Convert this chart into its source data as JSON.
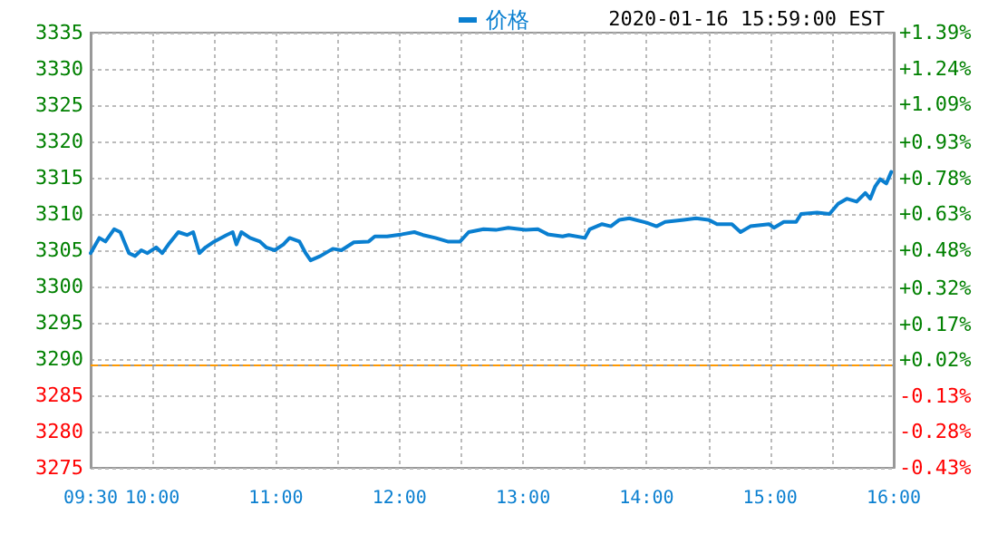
{
  "chart_data": {
    "type": "line",
    "subtitle": "2020-01-16 15:59:00 EST",
    "x": [
      9.5,
      9.57,
      9.62,
      9.69,
      9.74,
      9.81,
      9.86,
      9.91,
      9.96,
      10.03,
      10.08,
      10.13,
      10.21,
      10.28,
      10.33,
      10.38,
      10.43,
      10.5,
      10.6,
      10.65,
      10.68,
      10.72,
      10.79,
      10.87,
      10.92,
      10.99,
      11.06,
      11.11,
      11.19,
      11.24,
      11.28,
      11.36,
      11.46,
      11.53,
      11.63,
      11.75,
      11.8,
      11.9,
      12.02,
      12.12,
      12.19,
      12.29,
      12.39,
      12.49,
      12.56,
      12.68,
      12.78,
      12.88,
      13.02,
      13.12,
      13.2,
      13.32,
      13.37,
      13.5,
      13.54,
      13.64,
      13.71,
      13.78,
      13.86,
      14.0,
      14.08,
      14.15,
      14.3,
      14.4,
      14.5,
      14.57,
      14.69,
      14.76,
      14.84,
      14.99,
      15.03,
      15.11,
      15.21,
      15.25,
      15.38,
      15.48,
      15.55,
      15.62,
      15.7,
      15.77,
      15.81,
      15.85,
      15.89,
      15.94,
      15.98
    ],
    "series": [
      {
        "name": "价格",
        "color": "#0a7fd0",
        "values": [
          3304.6,
          3306.7,
          3306.2,
          3307.9,
          3307.5,
          3304.6,
          3304.2,
          3305.0,
          3304.6,
          3305.4,
          3304.6,
          3305.8,
          3307.5,
          3307.1,
          3307.5,
          3304.6,
          3305.4,
          3306.2,
          3307.1,
          3307.5,
          3305.8,
          3307.5,
          3306.7,
          3306.2,
          3305.4,
          3305.0,
          3305.8,
          3306.7,
          3306.2,
          3304.6,
          3303.6,
          3304.2,
          3305.2,
          3305.0,
          3306.1,
          3306.2,
          3306.9,
          3306.9,
          3307.2,
          3307.5,
          3307.1,
          3306.7,
          3306.2,
          3306.2,
          3307.5,
          3307.9,
          3307.8,
          3308.1,
          3307.8,
          3307.9,
          3307.2,
          3306.9,
          3307.1,
          3306.7,
          3307.9,
          3308.6,
          3308.3,
          3309.2,
          3309.4,
          3308.8,
          3308.3,
          3308.9,
          3309.2,
          3309.4,
          3309.2,
          3308.6,
          3308.6,
          3307.5,
          3308.3,
          3308.6,
          3308.1,
          3308.9,
          3308.9,
          3310.0,
          3310.2,
          3310.0,
          3311.4,
          3312.1,
          3311.7,
          3312.9,
          3312.1,
          3313.8,
          3314.8,
          3314.2,
          3315.8
        ]
      }
    ],
    "xlim": [
      9.5,
      16
    ],
    "xticks": [
      {
        "value": 9.5,
        "label": "09:30"
      },
      {
        "value": 10,
        "label": "10:00"
      },
      {
        "value": 10.5,
        "label": null
      },
      {
        "value": 11,
        "label": "11:00"
      },
      {
        "value": 11.5,
        "label": null
      },
      {
        "value": 12,
        "label": "12:00"
      },
      {
        "value": 12.5,
        "label": null
      },
      {
        "value": 13,
        "label": "13:00"
      },
      {
        "value": 13.5,
        "label": null
      },
      {
        "value": 14,
        "label": "14:00"
      },
      {
        "value": 14.5,
        "label": null
      },
      {
        "value": 15,
        "label": "15:00"
      },
      {
        "value": 15.5,
        "label": null
      },
      {
        "value": 16,
        "label": "16:00"
      }
    ],
    "ylim": [
      3275,
      3335
    ],
    "yticks": [
      3275,
      3280,
      3285,
      3290,
      3295,
      3300,
      3305,
      3310,
      3315,
      3320,
      3325,
      3330,
      3335
    ],
    "y2lim": [
      -0.43,
      1.39
    ],
    "y2ticks": [
      {
        "value": -0.43,
        "label": "-0.43%"
      },
      {
        "value": -0.28,
        "label": "-0.28%"
      },
      {
        "value": -0.13,
        "label": "-0.13%"
      },
      {
        "value": 0.02,
        "label": "+0.02%"
      },
      {
        "value": 0.17,
        "label": "+0.17%"
      },
      {
        "value": 0.32,
        "label": "+0.32%"
      },
      {
        "value": 0.48,
        "label": "+0.48%"
      },
      {
        "value": 0.63,
        "label": "+0.63%"
      },
      {
        "value": 0.78,
        "label": "+0.78%"
      },
      {
        "value": 0.93,
        "label": "+0.93%"
      },
      {
        "value": 1.09,
        "label": "+1.09%"
      },
      {
        "value": 1.24,
        "label": "+1.24%"
      },
      {
        "value": 1.39,
        "label": "+1.39%"
      }
    ],
    "ref_lines": [
      {
        "axis": "y",
        "value": 3289.3,
        "color": "#ff9900",
        "line_style": "dashed"
      }
    ],
    "grid": true,
    "legend": "top",
    "marker": "none",
    "line_style": "solid"
  }
}
